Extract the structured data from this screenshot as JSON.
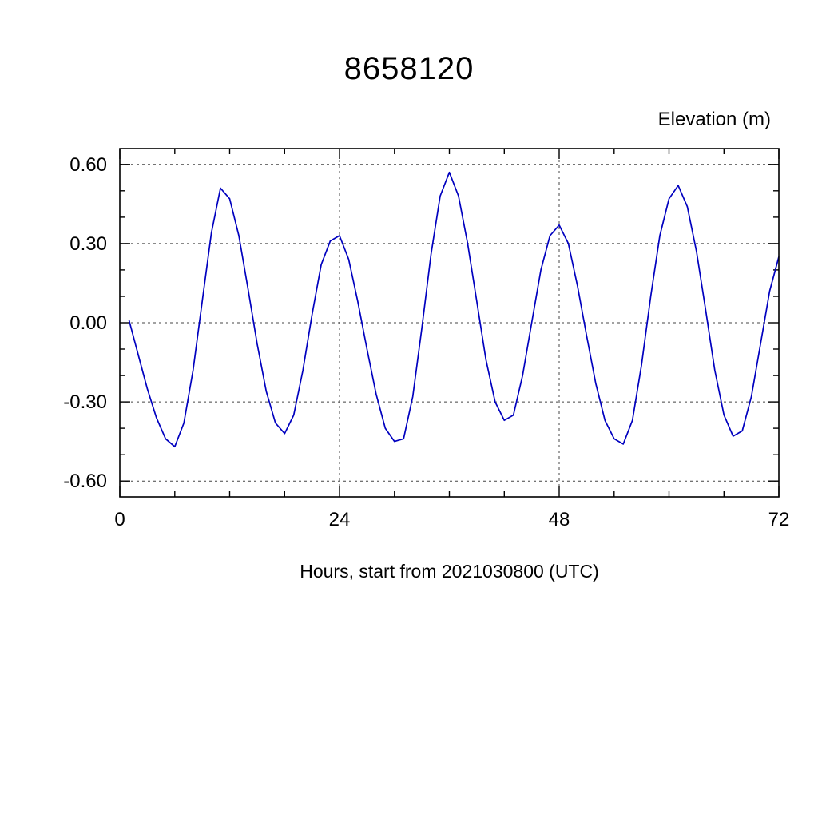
{
  "title": "8658120",
  "y_axis_title": "Elevation (m)",
  "x_axis_title": "Hours, start from 2021030800 (UTC)",
  "chart_data": {
    "type": "line",
    "title": "8658120",
    "xlabel": "Hours, start from 2021030800 (UTC)",
    "ylabel": "Elevation (m)",
    "xlim": [
      0,
      72
    ],
    "ylim": [
      -0.66,
      0.66
    ],
    "x_ticks": [
      0,
      24,
      48,
      72
    ],
    "x_tick_labels": [
      "0",
      "24",
      "48",
      "72"
    ],
    "y_ticks": [
      -0.6,
      -0.3,
      0.0,
      0.3,
      0.6
    ],
    "y_tick_labels": [
      "-0.60",
      "-0.30",
      "0.00",
      "0.30",
      "0.60"
    ],
    "x_minor_step": 6,
    "y_minor_step": 0.1,
    "grid": "dashed-at-major-ticks",
    "legend": "none",
    "series": [
      {
        "name": "elevation",
        "color": "#0000bf",
        "x": [
          1,
          2,
          3,
          4,
          5,
          6,
          7,
          8,
          9,
          10,
          11,
          12,
          13,
          14,
          15,
          16,
          17,
          18,
          19,
          20,
          21,
          22,
          23,
          24,
          25,
          26,
          27,
          28,
          29,
          30,
          31,
          32,
          33,
          34,
          35,
          36,
          37,
          38,
          39,
          40,
          41,
          42,
          43,
          44,
          45,
          46,
          47,
          48,
          49,
          50,
          51,
          52,
          53,
          54,
          55,
          56,
          57,
          58,
          59,
          60,
          61,
          62,
          63,
          64,
          65,
          66,
          67,
          68,
          69,
          70,
          71,
          72
        ],
        "y": [
          0.01,
          -0.12,
          -0.25,
          -0.36,
          -0.44,
          -0.47,
          -0.38,
          -0.18,
          0.08,
          0.34,
          0.51,
          0.47,
          0.33,
          0.13,
          -0.08,
          -0.26,
          -0.38,
          -0.42,
          -0.35,
          -0.18,
          0.03,
          0.22,
          0.31,
          0.33,
          0.24,
          0.08,
          -0.1,
          -0.27,
          -0.4,
          -0.45,
          -0.44,
          -0.28,
          -0.02,
          0.26,
          0.48,
          0.57,
          0.48,
          0.3,
          0.08,
          -0.14,
          -0.3,
          -0.37,
          -0.35,
          -0.2,
          0.0,
          0.2,
          0.33,
          0.37,
          0.3,
          0.14,
          -0.05,
          -0.23,
          -0.37,
          -0.44,
          -0.46,
          -0.37,
          -0.16,
          0.1,
          0.33,
          0.47,
          0.52,
          0.44,
          0.27,
          0.05,
          -0.18,
          -0.35,
          -0.43,
          -0.41,
          -0.28,
          -0.08,
          0.12,
          0.25
        ]
      }
    ]
  }
}
